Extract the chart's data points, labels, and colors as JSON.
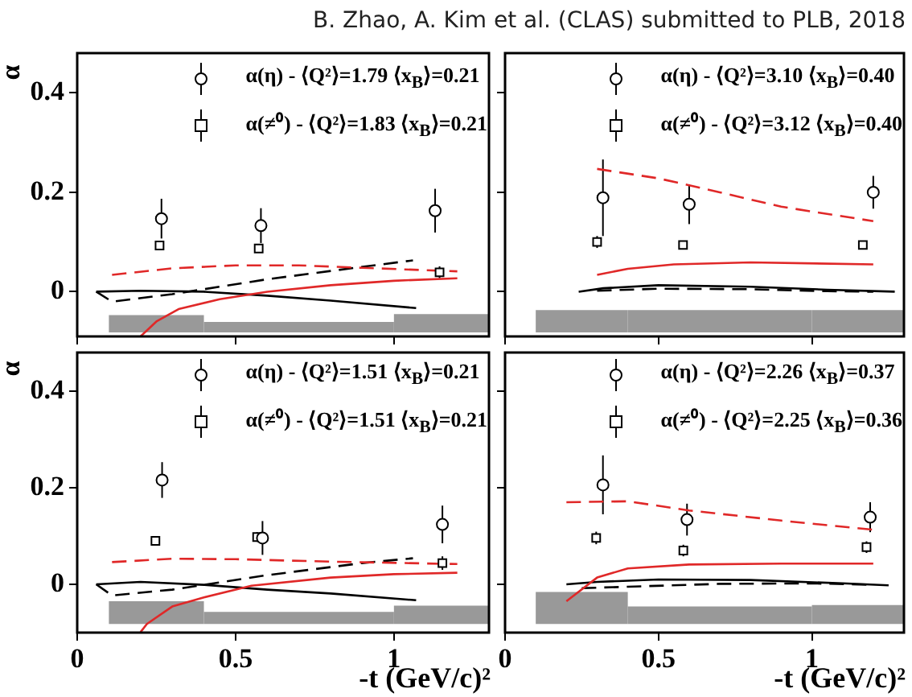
{
  "chart_data": [
    {
      "type": "scatter",
      "title": "B. Zhao, A. Kim et al. (CLAS) submitted to PLB, 2018",
      "ylabel": "α",
      "xlim": [
        0,
        1.3
      ],
      "ylim": [
        -0.09,
        0.48
      ],
      "xticks": [
        0,
        0.5,
        1
      ],
      "yticks": [
        0,
        0.2,
        0.4
      ],
      "tick_labels": "y",
      "legend": "top right",
      "series": [
        {
          "name": "α(η) - ⟨Q²⟩=1.79 ⟨x$_{B}$⟩=0.21",
          "type": "scatter",
          "marker": "circle",
          "color": "#000000",
          "x": [
            0.266,
            0.58,
            1.13
          ],
          "values": [
            0.147,
            0.133,
            0.163
          ],
          "errors": [
            0.04,
            0.035,
            0.044
          ]
        },
        {
          "name": "α(≠⁰) - ⟨Q²⟩=1.83 ⟨x$_{B}$⟩=0.21",
          "type": "scatter",
          "marker": "square",
          "color": "#000000",
          "x": [
            0.26,
            0.573,
            1.144
          ],
          "values": [
            0.093,
            0.087,
            0.039
          ],
          "errors": [
            0.005,
            0.006,
            0.012
          ]
        },
        {
          "type": "line",
          "line_style": "dashed",
          "color": "#e02828",
          "x": [
            0.11,
            0.3,
            0.5,
            0.7,
            0.9,
            1.2
          ],
          "values": [
            0.034,
            0.047,
            0.053,
            0.053,
            0.048,
            0.041
          ]
        },
        {
          "type": "line",
          "line_style": "solid",
          "color": "#e02828",
          "x": [
            0.2,
            0.25,
            0.32,
            0.45,
            0.6,
            0.8,
            1.0,
            1.2
          ],
          "values": [
            -0.09,
            -0.06,
            -0.035,
            -0.015,
            0.0,
            0.013,
            0.022,
            0.027
          ]
        },
        {
          "type": "line",
          "line_style": "dashed",
          "color": "#000000",
          "x": [
            0.06,
            0.11,
            0.3,
            0.6,
            0.9,
            1.06
          ],
          "values": [
            0.0,
            -0.02,
            -0.005,
            0.025,
            0.05,
            0.063
          ]
        },
        {
          "type": "line",
          "line_style": "solid",
          "color": "#000000",
          "x": [
            0.06,
            0.2,
            0.4,
            0.6,
            0.8,
            1.07
          ],
          "values": [
            0.0,
            0.002,
            0.0,
            -0.008,
            -0.018,
            -0.033
          ]
        },
        {
          "type": "histogram",
          "color": "#999999",
          "bins": [
            0.1,
            0.4,
            1.0,
            1.3
          ],
          "base": [
            -0.082,
            -0.082,
            -0.082
          ],
          "values": [
            0.035,
            0.021,
            0.037
          ]
        }
      ]
    },
    {
      "type": "scatter",
      "xlim": [
        0,
        1.3
      ],
      "ylim": [
        -0.09,
        0.48
      ],
      "xticks": [
        0,
        0.5,
        1
      ],
      "yticks": [
        0,
        0.2,
        0.4
      ],
      "tick_labels": false,
      "legend": "top right",
      "series": [
        {
          "name": "α(η) - ⟨Q²⟩=3.10 ⟨x$_{B}$⟩=0.40",
          "type": "scatter",
          "marker": "circle",
          "color": "#000000",
          "x": [
            0.319,
            0.6,
            1.2
          ],
          "values": [
            0.189,
            0.176,
            0.2
          ],
          "errors": [
            0.077,
            0.04,
            0.033
          ]
        },
        {
          "name": "α(≠⁰) - ⟨Q²⟩=3.12 ⟨x$_{B}$⟩=0.40",
          "type": "scatter",
          "marker": "square",
          "color": "#000000",
          "x": [
            0.3,
            0.58,
            1.166
          ],
          "values": [
            0.1,
            0.094,
            0.094
          ],
          "errors": [
            0.012,
            0.008,
            0.008
          ]
        },
        {
          "type": "line",
          "line_style": "dashed",
          "color": "#e02828",
          "x": [
            0.3,
            0.5,
            0.7,
            0.9,
            1.2
          ],
          "values": [
            0.247,
            0.228,
            0.2,
            0.171,
            0.142
          ]
        },
        {
          "type": "line",
          "line_style": "solid",
          "color": "#e02828",
          "x": [
            0.3,
            0.4,
            0.55,
            0.8,
            1.2
          ],
          "values": [
            0.034,
            0.046,
            0.055,
            0.059,
            0.055
          ]
        },
        {
          "type": "line",
          "line_style": "dashed",
          "color": "#000000",
          "x": [
            0.3,
            0.5,
            0.8,
            1.05,
            1.2
          ],
          "values": [
            0.002,
            0.006,
            0.005,
            0.001,
            0.0
          ]
        },
        {
          "type": "line",
          "line_style": "solid",
          "color": "#000000",
          "x": [
            0.24,
            0.32,
            0.5,
            0.8,
            1.05,
            1.27
          ],
          "values": [
            0.0,
            0.007,
            0.013,
            0.01,
            0.004,
            0.0
          ]
        },
        {
          "type": "histogram",
          "color": "#999999",
          "bins": [
            0.1,
            0.4,
            1.0,
            1.3
          ],
          "base": [
            -0.082,
            -0.082,
            -0.082
          ],
          "values": [
            0.045,
            0.045,
            0.045
          ]
        }
      ]
    },
    {
      "type": "scatter",
      "xlabel": "-t (GeV/c)²",
      "ylabel": "α",
      "xlim": [
        0,
        1.3
      ],
      "ylim": [
        -0.1,
        0.48
      ],
      "xticks": [
        0,
        0.5,
        1
      ],
      "yticks": [
        0,
        0.2,
        0.4
      ],
      "legend": "top right",
      "series": [
        {
          "name": "α(η) - ⟨Q²⟩=1.51 ⟨x$_{B}$⟩=0.21",
          "type": "scatter",
          "marker": "circle",
          "color": "#000000",
          "x": [
            0.268,
            0.585,
            1.153
          ],
          "values": [
            0.216,
            0.096,
            0.124
          ],
          "errors": [
            0.037,
            0.035,
            0.039
          ]
        },
        {
          "name": "α(≠⁰) - ⟨Q²⟩=1.51 ⟨x$_{B}$⟩=0.21",
          "type": "scatter",
          "marker": "square",
          "color": "#000000",
          "x": [
            0.247,
            0.568,
            1.153
          ],
          "values": [
            0.09,
            0.098,
            0.044
          ],
          "errors": [
            0.005,
            0.01,
            0.014
          ]
        },
        {
          "type": "line",
          "line_style": "dashed",
          "color": "#e02828",
          "x": [
            0.11,
            0.3,
            0.5,
            0.8,
            1.2
          ],
          "values": [
            0.046,
            0.053,
            0.052,
            0.047,
            0.042
          ]
        },
        {
          "type": "line",
          "line_style": "solid",
          "color": "#e02828",
          "x": [
            0.2,
            0.22,
            0.3,
            0.4,
            0.55,
            0.8,
            1.0,
            1.2
          ],
          "values": [
            -0.099,
            -0.082,
            -0.046,
            -0.027,
            -0.003,
            0.014,
            0.021,
            0.024
          ]
        },
        {
          "type": "line",
          "line_style": "dashed",
          "color": "#000000",
          "x": [
            0.06,
            0.11,
            0.3,
            0.6,
            0.9,
            1.06
          ],
          "values": [
            0.0,
            -0.023,
            -0.011,
            0.019,
            0.044,
            0.054
          ]
        },
        {
          "type": "line",
          "line_style": "solid",
          "color": "#000000",
          "x": [
            0.06,
            0.2,
            0.4,
            0.6,
            0.8,
            1.07
          ],
          "values": [
            0.0,
            0.005,
            -0.001,
            -0.011,
            -0.019,
            -0.033
          ]
        },
        {
          "type": "histogram",
          "color": "#999999",
          "bins": [
            0.1,
            0.4,
            1.0,
            1.3
          ],
          "base": [
            -0.082,
            -0.082,
            -0.082
          ],
          "values": [
            0.047,
            0.025,
            0.038
          ]
        }
      ]
    },
    {
      "type": "scatter",
      "xlabel": "-t (GeV/c)²",
      "xlim": [
        0,
        1.3
      ],
      "ylim": [
        -0.1,
        0.48
      ],
      "xticks": [
        0,
        0.5,
        1
      ],
      "yticks": [
        0,
        0.2,
        0.4
      ],
      "tick_labels": "x",
      "legend": "top right",
      "series": [
        {
          "name": "α(η) - ⟨Q²⟩=2.26 ⟨x$_{B}$⟩=0.37",
          "type": "scatter",
          "marker": "circle",
          "color": "#000000",
          "x": [
            0.319,
            0.593,
            1.19
          ],
          "values": [
            0.206,
            0.134,
            0.139
          ],
          "errors": [
            0.061,
            0.033,
            0.031
          ]
        },
        {
          "name": "α(≠⁰) - ⟨Q²⟩=2.25 ⟨x$_{B}$⟩=0.36",
          "type": "scatter",
          "marker": "square",
          "color": "#000000",
          "x": [
            0.297,
            0.581,
            1.178
          ],
          "values": [
            0.096,
            0.07,
            0.077
          ],
          "errors": [
            0.013,
            0.012,
            0.012
          ]
        },
        {
          "type": "line",
          "line_style": "dashed",
          "color": "#e02828",
          "x": [
            0.2,
            0.4,
            0.6,
            0.9,
            1.2
          ],
          "values": [
            0.17,
            0.172,
            0.153,
            0.132,
            0.113
          ]
        },
        {
          "type": "line",
          "line_style": "solid",
          "color": "#e02828",
          "x": [
            0.2,
            0.3,
            0.4,
            0.6,
            0.9,
            1.2
          ],
          "values": [
            -0.035,
            0.014,
            0.033,
            0.041,
            0.043,
            0.043
          ]
        },
        {
          "type": "line",
          "line_style": "dashed",
          "color": "#000000",
          "x": [
            0.25,
            0.4,
            0.7,
            1.0,
            1.2
          ],
          "values": [
            -0.008,
            -0.005,
            0.001,
            0.002,
            -0.001
          ]
        },
        {
          "type": "line",
          "line_style": "solid",
          "color": "#000000",
          "x": [
            0.2,
            0.3,
            0.5,
            0.8,
            1.1,
            1.25
          ],
          "values": [
            0.0,
            0.005,
            0.01,
            0.009,
            0.002,
            -0.002
          ]
        },
        {
          "type": "histogram",
          "color": "#999999",
          "bins": [
            0.1,
            0.4,
            1.0,
            1.3
          ],
          "base": [
            -0.082,
            -0.082,
            -0.082
          ],
          "values": [
            0.066,
            0.036,
            0.039
          ]
        }
      ]
    }
  ]
}
